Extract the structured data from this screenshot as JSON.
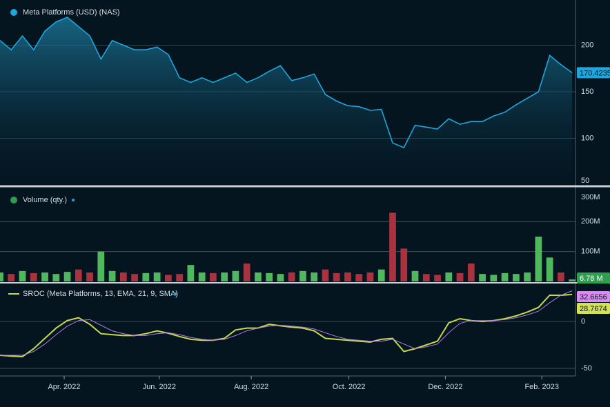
{
  "chart_data": [
    {
      "type": "area",
      "title": "Meta Platforms (USD) (NAS)",
      "color": "#1ea7de",
      "values": [
        205,
        195,
        210,
        195,
        215,
        225,
        230,
        220,
        210,
        185,
        205,
        200,
        195,
        195,
        198,
        190,
        165,
        160,
        165,
        160,
        165,
        170,
        160,
        165,
        172,
        178,
        162,
        165,
        169,
        147,
        140,
        135,
        134,
        130,
        131,
        95,
        90,
        114,
        112,
        110,
        121,
        115,
        118,
        118,
        124,
        128,
        136,
        143,
        150,
        189,
        179,
        170.4235
      ],
      "xlim": [
        0,
        51.3
      ],
      "xticks": [
        {
          "value": 5.72,
          "label": "Apr. 2022"
        },
        {
          "value": 14.2,
          "label": "Jun. 2022"
        },
        {
          "value": 22.4,
          "label": "Aug. 2022"
        },
        {
          "value": 31.1,
          "label": "Oct. 2022"
        },
        {
          "value": 39.7,
          "label": "Dec. 2022"
        },
        {
          "value": 48.3,
          "label": "Feb. 2023"
        }
      ],
      "ylim": [
        50,
        248.5
      ],
      "yticks": [
        50,
        100,
        150,
        200
      ],
      "grid": true
    },
    {
      "type": "bar",
      "title": "Volume (qty.)",
      "color": "#2e9e4f",
      "values": [
        30,
        25,
        35,
        28,
        30,
        25,
        32,
        40,
        30,
        100,
        35,
        30,
        25,
        28,
        30,
        22,
        25,
        55,
        30,
        28,
        30,
        35,
        60,
        30,
        28,
        25,
        30,
        35,
        30,
        40,
        28,
        30,
        25,
        30,
        40,
        230,
        110,
        35,
        25,
        22,
        30,
        28,
        60,
        25,
        22,
        28,
        25,
        30,
        150,
        80,
        30,
        6.78
      ],
      "colors": [
        "#4fb85f",
        "#a8323e",
        "#4fb85f",
        "#a8323e",
        "#4fb85f",
        "#4fb85f",
        "#4fb85f",
        "#a8323e",
        "#a8323e",
        "#4fb85f",
        "#4fb85f",
        "#a8323e",
        "#a8323e",
        "#4fb85f",
        "#4fb85f",
        "#a8323e",
        "#a8323e",
        "#4fb85f",
        "#4fb85f",
        "#a8323e",
        "#4fb85f",
        "#4fb85f",
        "#a8323e",
        "#4fb85f",
        "#4fb85f",
        "#4fb85f",
        "#a8323e",
        "#4fb85f",
        "#4fb85f",
        "#a8323e",
        "#a8323e",
        "#a8323e",
        "#a8323e",
        "#a8323e",
        "#4fb85f",
        "#a8323e",
        "#a8323e",
        "#4fb85f",
        "#a8323e",
        "#a8323e",
        "#4fb85f",
        "#a8323e",
        "#a8323e",
        "#4fb85f",
        "#4fb85f",
        "#4fb85f",
        "#4fb85f",
        "#4fb85f",
        "#4fb85f",
        "#4fb85f",
        "#a8323e",
        "#4fb85f"
      ],
      "last_value_label": "6.78 M",
      "ylim": [
        0,
        300
      ],
      "yticks": [
        {
          "value": 100,
          "label": "100M"
        },
        {
          "value": 200,
          "label": "200M"
        },
        {
          "value": 300,
          "label": "300M"
        }
      ],
      "grid": true
    },
    {
      "type": "line",
      "title": "SROC (Meta Platforms, 13, EMA, 21, 9, SMA)",
      "series": [
        {
          "color": "#c5d94a",
          "values": [
            -36,
            -37,
            -37.5,
            -29,
            -18,
            -7,
            1,
            4,
            -3,
            -13,
            -14,
            -15,
            -15,
            -13,
            -10,
            -12.5,
            -16,
            -19,
            -20,
            -20,
            -18,
            -9,
            -7,
            -7,
            -3,
            -4.5,
            -6,
            -7,
            -10,
            -18,
            -19,
            -20,
            -21,
            -22,
            -19,
            -18,
            -32,
            -29,
            -25,
            -21,
            -1.5,
            3,
            1,
            0,
            1,
            3,
            6,
            10,
            15,
            28,
            28,
            28.7674
          ]
        },
        {
          "color": "#b07ce0",
          "values": [
            -36,
            -36,
            -36,
            -32,
            -24,
            -14,
            -5,
            1,
            2,
            -4,
            -10,
            -13,
            -15,
            -15,
            -13,
            -12,
            -14,
            -17,
            -19,
            -20,
            -19,
            -15,
            -10,
            -7,
            -5,
            -4,
            -5,
            -6,
            -8,
            -12,
            -16,
            -19,
            -20,
            -21,
            -21,
            -19,
            -24,
            -29,
            -27,
            -24,
            -12,
            -2,
            1,
            1,
            1,
            2,
            4,
            7,
            11,
            20,
            28,
            32.6656
          ]
        }
      ],
      "ylim": [
        -54.4,
        36.8
      ],
      "yticks": [
        -50,
        0
      ],
      "grid": true
    }
  ]
}
